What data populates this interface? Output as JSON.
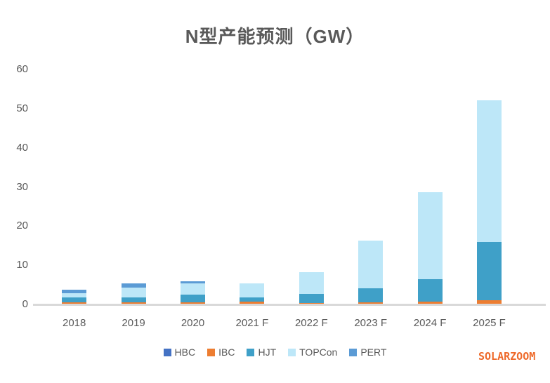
{
  "title": "N型产能预测（GW）",
  "watermark": "SOLARZOOM",
  "colors": {
    "text": "#595959",
    "axis_line": "#d9d9d9",
    "watermark": "#ee6a2b"
  },
  "chart_data": {
    "type": "bar",
    "stacked": true,
    "title": "N型产能预测（GW）",
    "xlabel": "",
    "ylabel": "",
    "categories": [
      "2018",
      "2019",
      "2020",
      "2021 F",
      "2022 F",
      "2023 F",
      "2024 F",
      "2025 F"
    ],
    "series": [
      {
        "name": "HBC",
        "color": "#4472c4",
        "values": [
          0,
          0,
          0,
          0,
          0,
          0,
          0,
          0
        ]
      },
      {
        "name": "IBC",
        "color": "#ed7d31",
        "values": [
          0.8,
          0.8,
          0.8,
          0.9,
          0.6,
          0.8,
          0.9,
          1.3
        ]
      },
      {
        "name": "HJT",
        "color": "#3fa0c8",
        "values": [
          1.1,
          1.2,
          1.8,
          1.1,
          2.2,
          3.5,
          5.8,
          14.9
        ]
      },
      {
        "name": "TOPCon",
        "color": "#bde7f8",
        "values": [
          1.1,
          2.4,
          2.9,
          3.6,
          5.7,
          12.1,
          22.2,
          36.1
        ]
      },
      {
        "name": "PERT",
        "color": "#5b9bd5",
        "values": [
          1.0,
          1.2,
          0.6,
          0,
          0,
          0,
          0,
          0
        ]
      }
    ],
    "totals": [
      4.0,
      5.6,
      6.1,
      5.6,
      8.5,
      16.4,
      28.9,
      52.3
    ],
    "ylim": [
      0,
      60
    ],
    "yticks": [
      0,
      10,
      20,
      30,
      40,
      50,
      60
    ],
    "grid": false,
    "legend_position": "bottom"
  }
}
